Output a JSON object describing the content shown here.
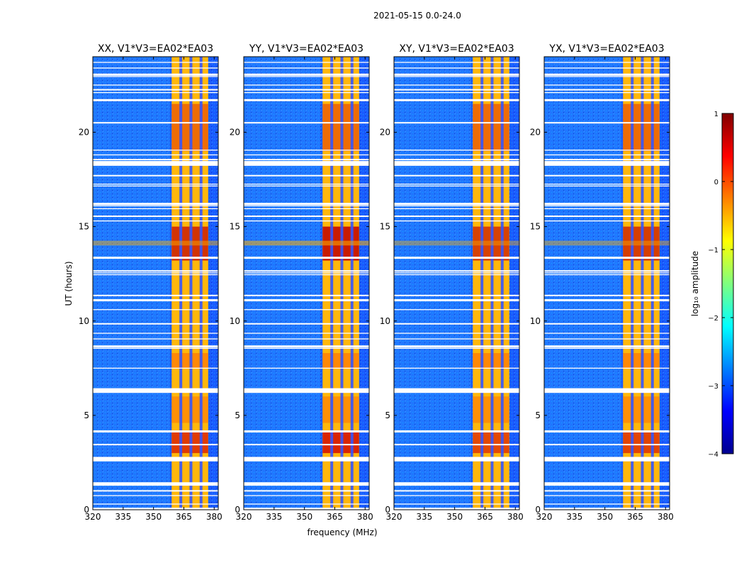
{
  "chart_data": {
    "type": "heatmap",
    "suptitle": "2021-05-15 0.0-24.0",
    "xlabel": "frequency (MHz)",
    "ylabel": "UT (hours)",
    "xlim": [
      320,
      382
    ],
    "ylim": [
      0,
      24
    ],
    "xticks": [
      320,
      335,
      350,
      365,
      380
    ],
    "yticks": [
      0,
      5,
      10,
      15,
      20
    ],
    "panels": [
      {
        "title": "XX, V1*V3=EA02*EA03",
        "intensity": 0.85
      },
      {
        "title": "YY, V1*V3=EA02*EA03",
        "intensity": 1.0
      },
      {
        "title": "XY, V1*V3=EA02*EA03",
        "intensity": 0.75
      },
      {
        "title": "YX, V1*V3=EA02*EA03",
        "intensity": 0.78
      }
    ],
    "colorbar": {
      "label": "log₁₀ amplitude",
      "range": [
        -4,
        1
      ],
      "ticks": [
        "1",
        "0",
        "−1",
        "−2",
        "−3",
        "−4"
      ],
      "colormap": "jet"
    },
    "rfi_band_mhz": [
      359,
      377
    ],
    "rfi_channel_gaps_mhz": [
      363.5,
      368.5,
      373.5
    ],
    "flagged_ut_hours": [
      0.05,
      0.3,
      0.75,
      1.0,
      1.3,
      1.4,
      2.6,
      2.7,
      2.75,
      3.45,
      4.15,
      6.3,
      6.4,
      7.5,
      8.55,
      8.65,
      9.05,
      9.35,
      9.85,
      10.6,
      11.1,
      11.35,
      12.45,
      12.55,
      12.65,
      13.35,
      15.3,
      15.55,
      15.95,
      16.1,
      16.2,
      17.15,
      17.25,
      17.7,
      18.25,
      18.4,
      18.55,
      18.8,
      19.05,
      20.5,
      21.7,
      22.1,
      22.25,
      22.5,
      22.95,
      23.05,
      23.4,
      23.7
    ]
  }
}
